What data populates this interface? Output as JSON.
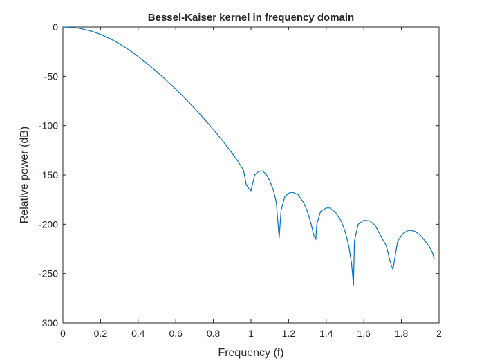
{
  "chart_data": {
    "type": "line",
    "title": "Bessel-Kaiser kernel in frequency domain",
    "xlabel": "Frequency (f)",
    "ylabel": "Relative power (dB)",
    "xlim": [
      0,
      2
    ],
    "ylim": [
      -300,
      0
    ],
    "xticks": [
      0,
      0.2,
      0.4,
      0.6,
      0.8,
      1,
      1.2,
      1.4,
      1.6,
      1.8,
      2
    ],
    "xtick_labels": [
      "0",
      "0.2",
      "0.4",
      "0.6",
      "0.8",
      "1",
      "1.2",
      "1.4",
      "1.6",
      "1.8",
      "2"
    ],
    "yticks": [
      0,
      -50,
      -100,
      -150,
      -200,
      -250,
      -300
    ],
    "ytick_labels": [
      "0",
      "-50",
      "-100",
      "-150",
      "-200",
      "-250",
      "-300"
    ],
    "grid": false,
    "box": true,
    "line_color": "#0072BD",
    "series": [
      {
        "x": [
          0,
          0.05,
          0.1,
          0.15,
          0.2,
          0.25,
          0.3,
          0.35,
          0.4,
          0.45,
          0.5,
          0.55,
          0.6,
          0.65,
          0.7,
          0.75,
          0.8,
          0.85,
          0.9,
          0.93,
          0.96,
          0.975,
          0.99,
          1.0,
          1.02,
          1.04,
          1.06,
          1.08,
          1.1,
          1.12,
          1.135,
          1.14,
          1.15,
          1.16,
          1.18,
          1.2,
          1.22,
          1.25,
          1.28,
          1.3,
          1.32,
          1.335,
          1.345,
          1.35,
          1.37,
          1.4,
          1.42,
          1.45,
          1.48,
          1.5,
          1.52,
          1.535,
          1.545,
          1.55,
          1.57,
          1.6,
          1.63,
          1.66,
          1.69,
          1.72,
          1.74,
          1.755,
          1.765,
          1.78,
          1.81,
          1.84,
          1.87,
          1.9,
          1.93,
          1.95,
          1.965,
          1.975
        ],
        "y": [
          0,
          -0.4,
          -1.8,
          -4.2,
          -7.5,
          -11.8,
          -17,
          -23,
          -30,
          -37.5,
          -45.5,
          -54,
          -63,
          -72.5,
          -82.5,
          -93,
          -104,
          -115.5,
          -128,
          -136,
          -145,
          -160,
          -164,
          -166,
          -150,
          -146.5,
          -146,
          -149,
          -156,
          -166,
          -178,
          -191,
          -214,
          -186,
          -172,
          -168.5,
          -167.5,
          -170,
          -178,
          -187,
          -200,
          -212,
          -215,
          -200,
          -187,
          -183.5,
          -183.5,
          -188,
          -197,
          -207,
          -222,
          -240,
          -262,
          -217,
          -200,
          -196,
          -196.5,
          -201,
          -212,
          -222,
          -238,
          -246,
          -234,
          -217,
          -209,
          -206,
          -207,
          -211,
          -218,
          -223,
          -229,
          -235
        ]
      }
    ]
  }
}
